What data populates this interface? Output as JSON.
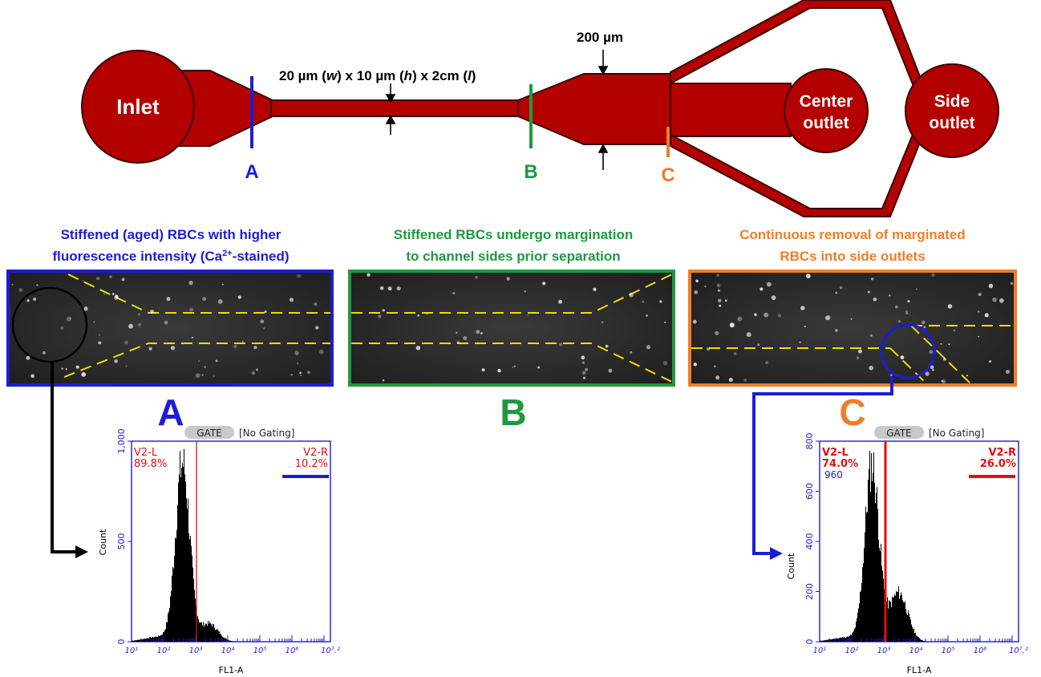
{
  "channel": {
    "inlet_label": "Inlet",
    "center_outlet_line1": "Center",
    "center_outlet_line2": "outlet",
    "side_outlet_line1": "Side",
    "side_outlet_line2": "outlet",
    "dim_main_pre": "20 µm (",
    "dim_w": "w",
    "dim_mid1": ") x 10 µm (",
    "dim_h": "h",
    "dim_mid2": ") x 2cm (",
    "dim_l": "l",
    "dim_end": ")",
    "dim_width": "200 µm",
    "marker_a": "A",
    "marker_b": "B",
    "marker_c": "C",
    "color_channel": "#b30000",
    "color_a": "#1c1cd6",
    "color_b": "#1e9a3c",
    "color_c": "#f07d28"
  },
  "captions": {
    "a_line1": "Stiffened (aged) RBCs with higher",
    "a_line2_pre": "fluorescence intensity (Ca",
    "a_line2_sup": "2+",
    "a_line2_post": "-stained)",
    "b_line1": "Stiffened RBCs undergo margination",
    "b_line2": "to channel sides prior separation",
    "c_line1": "Continuous removal of marginated",
    "c_line2": "RBCs into side outlets"
  },
  "panel_labels": {
    "a": "A",
    "b": "B",
    "c": "C"
  },
  "histograms": [
    {
      "gate_label": "GATE",
      "gate_text": "[No Gating]",
      "left_gate": "V2-L",
      "left_pct": "89.8%",
      "left_count": "",
      "right_gate": "V2-R",
      "right_pct": "10.2%",
      "right_bar_color": "#1c1cd6",
      "ylabel": "Count",
      "xlabel": "FL1-A",
      "yticks": [
        "0",
        "500",
        "1,000"
      ],
      "ymax": 1000,
      "xticks": [
        "10¹",
        "10²",
        "10³",
        "10⁴",
        "10⁵",
        "10⁶",
        "10⁷.²"
      ],
      "gate_x": 3.0
    },
    {
      "gate_label": "GATE",
      "gate_text": "[No Gating]",
      "left_gate": "V2-L",
      "left_pct": "74.0%",
      "left_count": "960",
      "right_gate": "V2-R",
      "right_pct": "26.0%",
      "right_bar_color": "#e01010",
      "ylabel": "Count",
      "xlabel": "FL1-A",
      "yticks": [
        "0",
        "200",
        "400",
        "600",
        "800"
      ],
      "ymax": 800,
      "xticks": [
        "10¹",
        "10²",
        "10³",
        "10⁴",
        "10⁵",
        "10⁶",
        "10⁷.²"
      ],
      "gate_x": 3.0
    }
  ]
}
